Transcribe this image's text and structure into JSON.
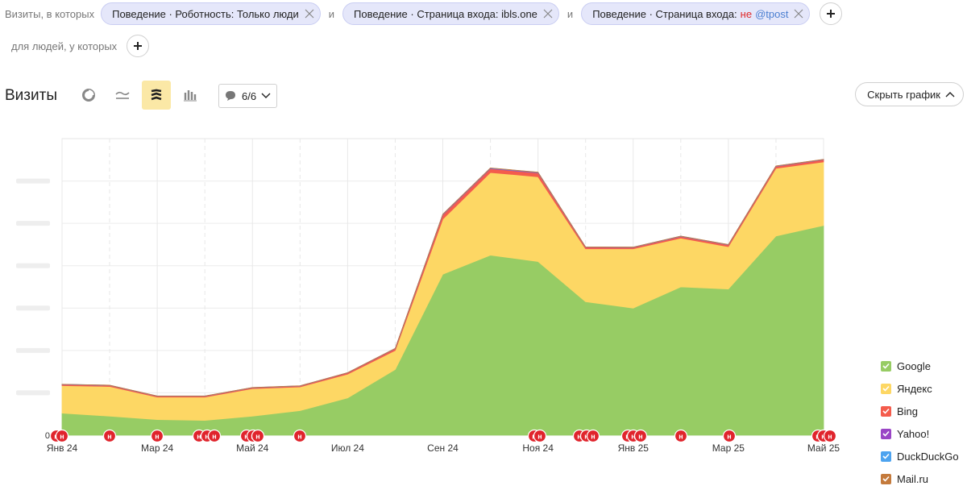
{
  "filters": {
    "lead_text": "Визиты, в которых",
    "conjunction": "и",
    "chips": [
      {
        "text": "Поведение · Роботность: Только люди"
      },
      {
        "text": "Поведение · Страница входа: ibls.one"
      },
      {
        "text": "Поведение · Страница входа:",
        "negation": "не",
        "value": "@tpost"
      }
    ],
    "people_text": "для людей, у которых"
  },
  "toolbar": {
    "title": "Визиты",
    "annotations_label": "6/6",
    "hide_chart_label": "Скрыть график"
  },
  "chart_data": {
    "type": "area",
    "stacked": true,
    "x": [
      "2024-01",
      "2024-02",
      "2024-03",
      "2024-04",
      "2024-05",
      "2024-06",
      "2024-07",
      "2024-08",
      "2024-09",
      "2024-10",
      "2024-11",
      "2024-12",
      "2025-01",
      "2025-02",
      "2025-03",
      "2025-04",
      "2025-05"
    ],
    "x_tick_labels": [
      "Янв 24",
      "Мар 24",
      "Май 24",
      "Июл 24",
      "Сен 24",
      "Ноя 24",
      "Янв 25",
      "Мар 25",
      "Май 25"
    ],
    "y_tick_labels": [
      "0"
    ],
    "ylim": [
      0,
      7000
    ],
    "grid": true,
    "legend_position": "right",
    "series": [
      {
        "name": "Google",
        "color": "#97cc64",
        "values": [
          520,
          450,
          370,
          350,
          450,
          580,
          880,
          1550,
          3800,
          4250,
          4100,
          3150,
          3000,
          3500,
          3450,
          4700,
          4950
        ]
      },
      {
        "name": "Яндекс",
        "color": "#fdd764",
        "values": [
          650,
          700,
          530,
          550,
          650,
          560,
          560,
          450,
          1300,
          1950,
          2000,
          1250,
          1400,
          1150,
          1000,
          1600,
          1500
        ]
      },
      {
        "name": "Bing",
        "color": "#f45c4c",
        "values": [
          25,
          25,
          20,
          20,
          20,
          20,
          30,
          40,
          100,
          90,
          90,
          35,
          30,
          40,
          40,
          45,
          50
        ]
      },
      {
        "name": "Yahoo!",
        "color": "#9a45c6",
        "values": [
          3,
          3,
          3,
          3,
          3,
          3,
          3,
          5,
          10,
          10,
          10,
          5,
          5,
          5,
          5,
          5,
          5
        ]
      },
      {
        "name": "DuckDuckGo",
        "color": "#4da3ef",
        "values": [
          2,
          2,
          2,
          2,
          2,
          2,
          2,
          3,
          5,
          5,
          5,
          3,
          3,
          3,
          3,
          3,
          3
        ]
      },
      {
        "name": "Mail.ru",
        "color": "#c47a3c",
        "values": [
          2,
          2,
          2,
          2,
          2,
          2,
          2,
          2,
          3,
          3,
          3,
          2,
          2,
          2,
          2,
          2,
          2
        ]
      }
    ],
    "annotation_marker_label": "н"
  }
}
